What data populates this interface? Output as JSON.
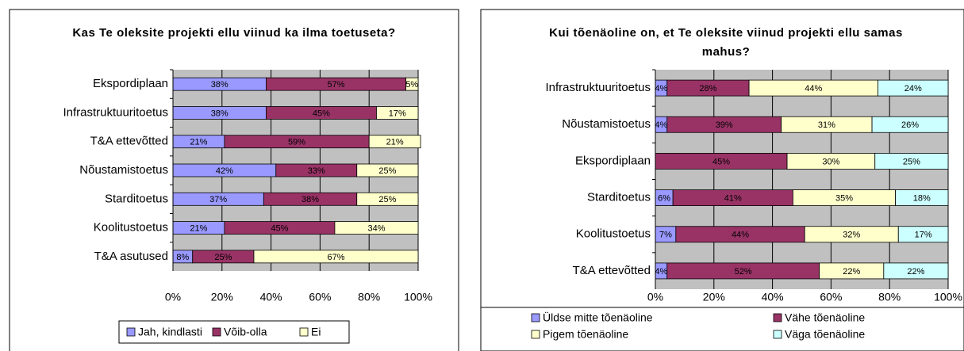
{
  "chart_data": [
    {
      "type": "stacked-bar-horizontal",
      "title": "Kas Te oleksite projekti ellu viinud ka ilma toetuseta?",
      "categories": [
        "Ekspordiplaan",
        "Infrastruktuuritoetus",
        "T&A ettevõtted",
        "Nõustamistoetus",
        "Starditoetus",
        "Koolitustoetus",
        "T&A asutused"
      ],
      "series": [
        {
          "name": "Jah, kindlasti",
          "color": "#9999ff",
          "values": [
            38,
            38,
            21,
            42,
            37,
            21,
            8
          ],
          "value_labels": [
            "38%",
            "38%",
            "21%",
            "42%",
            "37%",
            "21%",
            "8%"
          ]
        },
        {
          "name": "Võib-olla",
          "color": "#993366",
          "values": [
            57,
            45,
            59,
            33,
            38,
            45,
            25
          ],
          "value_labels": [
            "57%",
            "45%",
            "59%",
            "33%",
            "38%",
            "45%",
            "25%"
          ]
        },
        {
          "name": "Ei",
          "color": "#ffffcc",
          "values": [
            5,
            17,
            21,
            25,
            25,
            34,
            67
          ],
          "value_labels": [
            "5%",
            "17%",
            "21%",
            "25%",
            "25%",
            "34%",
            "67%"
          ]
        }
      ],
      "xlim": [
        0,
        100
      ],
      "xticks": [
        {
          "value": 0,
          "label": "0%"
        },
        {
          "value": 20,
          "label": "20%"
        },
        {
          "value": 40,
          "label": "40%"
        },
        {
          "value": 60,
          "label": "60%"
        },
        {
          "value": 80,
          "label": "80%"
        },
        {
          "value": 100,
          "label": "100%"
        }
      ],
      "grid": true
    },
    {
      "type": "stacked-bar-horizontal",
      "title": "Kui tõenäoline on, et Te oleksite viinud projekti ellu samas mahus?",
      "categories": [
        "Infrastruktuuritoetus",
        "Nõustamistoetus",
        "Ekspordiplaan",
        "Starditoetus",
        "Koolitustoetus",
        "T&A ettevõtted"
      ],
      "series": [
        {
          "name": "Üldse mitte tõenäoline",
          "color": "#9999ff",
          "values": [
            4,
            4,
            0,
            6,
            7,
            4
          ],
          "value_labels": [
            "4%",
            "4%",
            null,
            "6%",
            "7%",
            "4%"
          ]
        },
        {
          "name": "Vähe tõenäoline",
          "color": "#993366",
          "values": [
            28,
            39,
            45,
            41,
            44,
            52
          ],
          "value_labels": [
            "28%",
            "39%",
            "45%",
            "41%",
            "44%",
            "52%"
          ]
        },
        {
          "name": "Pigem tõenäoline",
          "color": "#ffffcc",
          "values": [
            44,
            31,
            30,
            35,
            32,
            22
          ],
          "value_labels": [
            "44%",
            "31%",
            "30%",
            "35%",
            "32%",
            "22%"
          ]
        },
        {
          "name": "Väga tõenäoline",
          "color": "#ccffff",
          "values": [
            24,
            26,
            25,
            18,
            17,
            22
          ],
          "value_labels": [
            "24%",
            "26%",
            "25%",
            "18%",
            "17%",
            "22%"
          ]
        }
      ],
      "xlim": [
        0,
        100
      ],
      "xticks": [
        {
          "value": 0,
          "label": "0%"
        },
        {
          "value": 20,
          "label": "20%"
        },
        {
          "value": 40,
          "label": "40%"
        },
        {
          "value": 60,
          "label": "60%"
        },
        {
          "value": 80,
          "label": "80%"
        },
        {
          "value": 100,
          "label": "100%"
        }
      ],
      "grid": true
    }
  ]
}
